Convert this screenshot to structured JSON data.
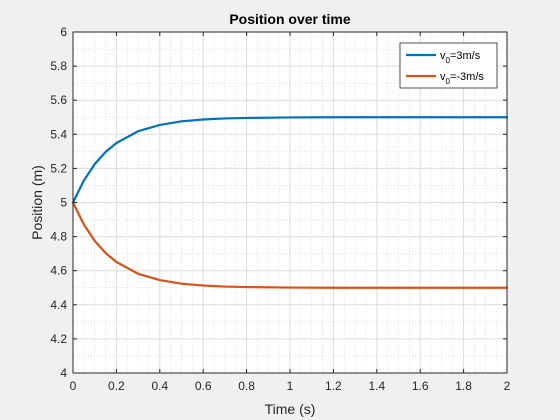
{
  "chart_data": {
    "type": "line",
    "title": "Position over time",
    "xlabel": "Time (s)",
    "ylabel": "Position (m)",
    "xlim": [
      0,
      2
    ],
    "ylim": [
      4,
      6
    ],
    "x_ticks": [
      0,
      0.2,
      0.4,
      0.6,
      0.8,
      1,
      1.2,
      1.4,
      1.6,
      1.8,
      2
    ],
    "x_tick_labels": [
      "0",
      "0.2",
      "0.4",
      "0.6",
      "0.8",
      "1",
      "1.2",
      "1.4",
      "1.6",
      "1.8",
      "2"
    ],
    "y_ticks": [
      4,
      4.2,
      4.4,
      4.6,
      4.8,
      5,
      5.2,
      5.4,
      5.6,
      5.8,
      6
    ],
    "y_tick_labels": [
      "4",
      "4.2",
      "4.4",
      "4.6",
      "4.8",
      "5",
      "5.2",
      "5.4",
      "5.6",
      "5.8",
      "6"
    ],
    "grid": "major and minor",
    "legend_position": "top-right",
    "x": [
      0,
      0.05,
      0.1,
      0.15,
      0.2,
      0.3,
      0.4,
      0.5,
      0.6,
      0.7,
      0.8,
      1,
      1.2,
      1.4,
      1.6,
      1.8,
      2
    ],
    "series": [
      {
        "name": "v0=3m/s",
        "legend_main": "v",
        "legend_sub": "0",
        "legend_rest": "=3m/s",
        "color": "#0072bd",
        "values": [
          5,
          5.129,
          5.225,
          5.296,
          5.349,
          5.418,
          5.455,
          5.476,
          5.487,
          5.493,
          5.496,
          5.499,
          5.5,
          5.5,
          5.5,
          5.5,
          5.5
        ]
      },
      {
        "name": "v0=-3m/s",
        "legend_main": "v",
        "legend_sub": "0",
        "legend_rest": "=-3m/s",
        "color": "#d95319",
        "values": [
          5,
          4.871,
          4.775,
          4.704,
          4.651,
          4.582,
          4.545,
          4.524,
          4.513,
          4.507,
          4.504,
          4.501,
          4.5,
          4.5,
          4.5,
          4.5,
          4.5
        ]
      }
    ]
  }
}
